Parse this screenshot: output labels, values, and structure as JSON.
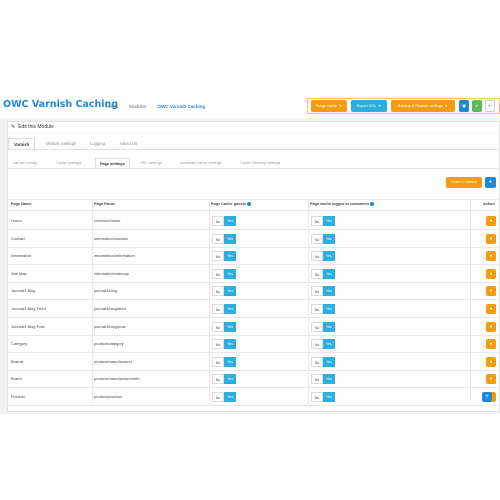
{
  "header": {
    "title": "OWC Varnish Caching",
    "breadcrumbs": [
      "Home",
      "Modules",
      "OWC Varnish Caching"
    ],
    "buttons": {
      "purge": "Purge cache",
      "export": "Export VCL",
      "backup": "Backup & Restore settings",
      "save_icon": "save-icon",
      "ok_icon": "check-icon",
      "back_icon": "back-arrow-icon"
    }
  },
  "panel": {
    "heading": "Edit this Module"
  },
  "tabs_main": [
    "Varnish",
    "Module Settings",
    "Logging",
    "About Us"
  ],
  "tabs_sub": [
    "Varnish config",
    "Cache settings",
    "Page settings",
    "URL settings",
    "Invalidate cache settings",
    "Cache Warmup settings"
  ],
  "actions": {
    "reset": "Reset to Default"
  },
  "table": {
    "headers": {
      "name": "Page Name",
      "route": "Page Route",
      "guests": "Page Cache guests",
      "customers": "Page cache logged in customers",
      "action": "Action"
    },
    "toggle": {
      "no": "No",
      "yes": "Yes"
    },
    "rows": [
      {
        "name": "Home",
        "route": "common/home"
      },
      {
        "name": "Contact",
        "route": "information/contact"
      },
      {
        "name": "Information",
        "route": "information/information"
      },
      {
        "name": "Site Map",
        "route": "information/sitemap"
      },
      {
        "name": "Journal3 Blog",
        "route": "journal3/blog"
      },
      {
        "name": "Journal3 Blog Feed",
        "route": "journal3/blog/feed"
      },
      {
        "name": "Journal3 Blog Post",
        "route": "journal3/blog/post"
      },
      {
        "name": "Category",
        "route": "product/category"
      },
      {
        "name": "Brands",
        "route": "product/manufacturer"
      },
      {
        "name": "Brand",
        "route": "product/manufacturer/info"
      },
      {
        "name": "Product",
        "route": "product/product"
      }
    ]
  },
  "colors": {
    "primary": "#1e8ad6",
    "warning": "#f39c12",
    "info": "#2eaee0",
    "success": "#5cb85c"
  }
}
